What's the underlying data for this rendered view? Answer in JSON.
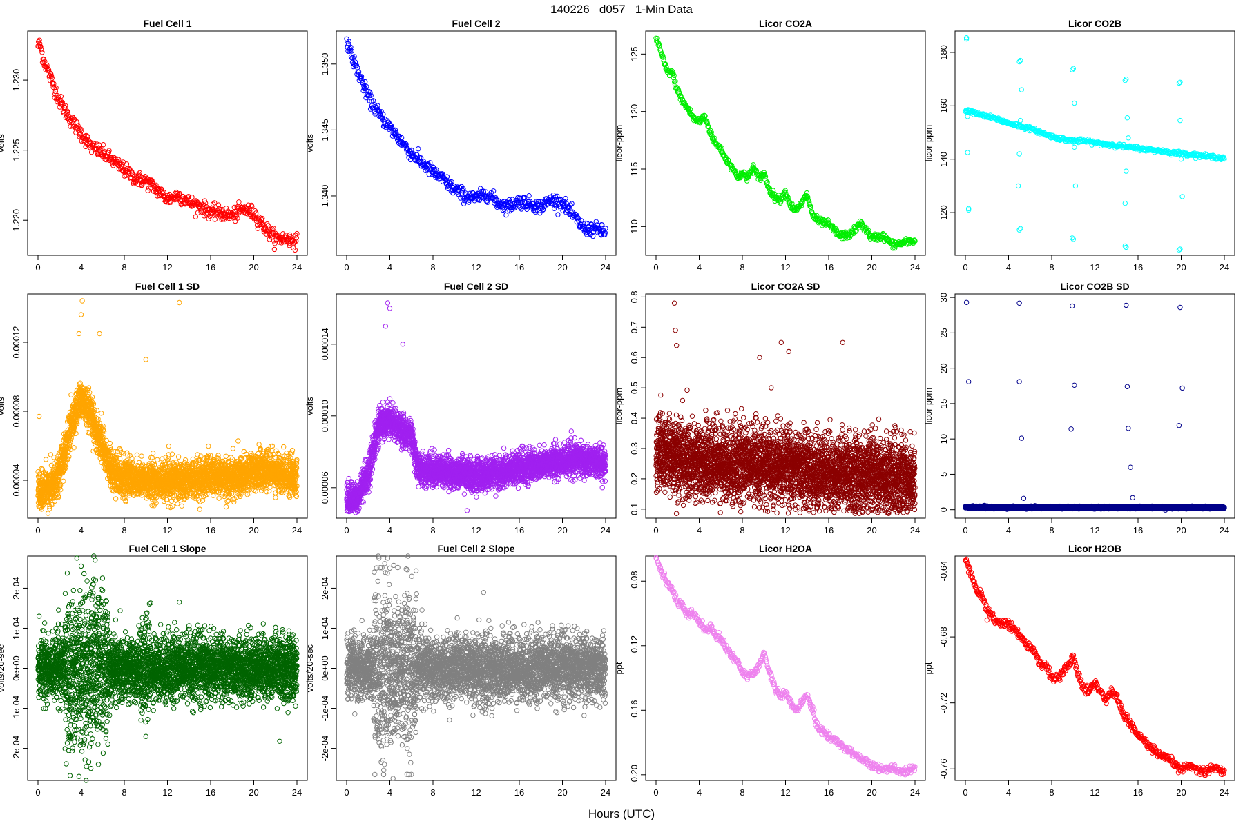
{
  "page": {
    "title": "140226   d057   1-Min Data",
    "xlabel": "Hours (UTC)"
  },
  "chart_data": [
    {
      "id": "fc1",
      "type": "scatter",
      "title": "Fuel Cell 1",
      "ylabel": "volts",
      "color": "#ff0000",
      "xlim": [
        0,
        24
      ],
      "ylim": [
        1.2175,
        1.2335
      ],
      "xticks": [
        0,
        4,
        8,
        12,
        16,
        20,
        24
      ],
      "yticks": [
        1.22,
        1.225,
        1.23
      ],
      "ytick_labels": [
        "1.220",
        "1.225",
        "1.230"
      ],
      "x": [
        0.2,
        0.5,
        1,
        1.5,
        2,
        3,
        4,
        5,
        6,
        7,
        8,
        9,
        10,
        11,
        12,
        13,
        14,
        15,
        16,
        17,
        18,
        19,
        20,
        21,
        22,
        23,
        24
      ],
      "y": [
        1.2325,
        1.2315,
        1.2305,
        1.2295,
        1.2285,
        1.2272,
        1.2262,
        1.2252,
        1.2248,
        1.2242,
        1.2236,
        1.223,
        1.2228,
        1.2222,
        1.2215,
        1.2218,
        1.2213,
        1.221,
        1.2206,
        1.2205,
        1.2203,
        1.2208,
        1.2205,
        1.2195,
        1.2187,
        1.2187,
        1.2185
      ],
      "noise": 0.00025,
      "density": 6
    },
    {
      "id": "fc2",
      "type": "scatter",
      "title": "Fuel Cell 2",
      "ylabel": "volts",
      "color": "#0000ff",
      "xlim": [
        0,
        24
      ],
      "ylim": [
        1.3355,
        1.3525
      ],
      "xticks": [
        0,
        4,
        8,
        12,
        16,
        20,
        24
      ],
      "yticks": [
        1.34,
        1.345,
        1.35
      ],
      "ytick_labels": [
        "1.340",
        "1.345",
        "1.350"
      ],
      "x": [
        0.2,
        0.5,
        1,
        1.5,
        2,
        3,
        4,
        5,
        6,
        7,
        8,
        9,
        10,
        11,
        12,
        13,
        14,
        15,
        16,
        17,
        18,
        19,
        20,
        21,
        22,
        23,
        24
      ],
      "y": [
        1.3515,
        1.3505,
        1.3495,
        1.3485,
        1.3475,
        1.3462,
        1.3452,
        1.3442,
        1.3432,
        1.3425,
        1.3418,
        1.3412,
        1.3405,
        1.34,
        1.3398,
        1.3402,
        1.3395,
        1.3392,
        1.3396,
        1.3394,
        1.3392,
        1.3397,
        1.3395,
        1.3385,
        1.3375,
        1.3375,
        1.3372
      ],
      "noise": 0.00025,
      "density": 6
    },
    {
      "id": "co2a",
      "type": "scatter",
      "title": "Licor CO2A",
      "ylabel": "licor-ppm",
      "color": "#00ee00",
      "xlim": [
        0,
        24
      ],
      "ylim": [
        107.5,
        127.0
      ],
      "xticks": [
        0,
        4,
        8,
        12,
        16,
        20,
        24
      ],
      "yticks": [
        110,
        115,
        120,
        125
      ],
      "ytick_labels": [
        "110",
        "115",
        "120",
        "125"
      ],
      "x": [
        0.1,
        0.5,
        1,
        1.5,
        2,
        2.5,
        3,
        3.5,
        4,
        4.5,
        5,
        5.5,
        6,
        6.5,
        7,
        7.5,
        8,
        8.5,
        9,
        9.5,
        10,
        10.5,
        11,
        11.5,
        12,
        12.5,
        13,
        13.5,
        14,
        14.5,
        15,
        16,
        17,
        18,
        19,
        20,
        21,
        22,
        23,
        24
      ],
      "y": [
        126.3,
        125.0,
        123.5,
        123.4,
        121.8,
        120.8,
        120.2,
        119.4,
        119.1,
        119.6,
        118.3,
        117.2,
        116.8,
        115.8,
        115.3,
        114.3,
        114.6,
        114.2,
        115.2,
        114.2,
        114.6,
        113.2,
        112.6,
        112.3,
        113.0,
        111.8,
        111.4,
        112.0,
        112.8,
        111.0,
        110.5,
        110.2,
        109.2,
        109.3,
        110.3,
        109.0,
        109.2,
        108.4,
        108.6,
        108.8
      ],
      "noise": 0.15,
      "density": 6
    },
    {
      "id": "co2b",
      "type": "scatter",
      "title": "Licor CO2B",
      "ylabel": "licor-ppm",
      "color": "#00ffff",
      "xlim": [
        0,
        24
      ],
      "ylim": [
        104,
        188
      ],
      "xticks": [
        0,
        4,
        8,
        12,
        16,
        20,
        24
      ],
      "yticks": [
        120,
        140,
        160,
        180
      ],
      "ytick_labels": [
        "120",
        "140",
        "160",
        "180"
      ],
      "x": [
        0.5,
        1,
        2,
        3,
        4,
        5,
        6,
        7,
        8,
        9,
        10,
        11,
        12,
        13,
        14,
        15,
        16,
        17,
        18,
        19,
        20,
        21,
        22,
        23,
        24
      ],
      "y": [
        158,
        157,
        156,
        155,
        153.5,
        152.5,
        151.5,
        150,
        148.5,
        147.5,
        147,
        146.8,
        146.2,
        145.6,
        145.2,
        144.5,
        144.2,
        143.5,
        143.2,
        142.6,
        142.2,
        141.8,
        141.2,
        140.8,
        140.5
      ],
      "noise": 0.35,
      "density": 5,
      "outliers": [
        [
          0.1,
          185
        ],
        [
          0.1,
          185.5
        ],
        [
          0.3,
          121
        ],
        [
          0.3,
          121.5
        ],
        [
          0.2,
          156
        ],
        [
          0.2,
          142.5
        ],
        [
          5.0,
          176.5
        ],
        [
          5.1,
          177
        ],
        [
          5.0,
          113.5
        ],
        [
          5.1,
          114
        ],
        [
          5.2,
          166
        ],
        [
          4.9,
          130
        ],
        [
          5.0,
          142
        ],
        [
          5.1,
          154.5
        ],
        [
          9.9,
          173.5
        ],
        [
          10.0,
          174
        ],
        [
          9.9,
          110.5
        ],
        [
          10.0,
          110
        ],
        [
          10.1,
          161
        ],
        [
          10.2,
          130
        ],
        [
          10.1,
          144.5
        ],
        [
          14.8,
          169.5
        ],
        [
          14.9,
          170
        ],
        [
          14.8,
          107.5
        ],
        [
          14.9,
          107
        ],
        [
          15.0,
          155.5
        ],
        [
          14.8,
          123.5
        ],
        [
          14.9,
          135.5
        ],
        [
          15.1,
          148
        ],
        [
          19.8,
          168.5
        ],
        [
          19.9,
          168.8
        ],
        [
          19.8,
          106
        ],
        [
          19.9,
          106.3
        ],
        [
          19.9,
          154.5
        ],
        [
          20.1,
          126
        ],
        [
          20.0,
          140
        ]
      ]
    },
    {
      "id": "fc1sd",
      "type": "scatter",
      "title": "Fuel Cell 1 SD",
      "ylabel": "volts",
      "color": "#ffa500",
      "xlim": [
        0,
        24
      ],
      "ylim": [
        1.8e-05,
        0.000148
      ],
      "xticks": [
        0,
        4,
        8,
        12,
        16,
        20,
        24
      ],
      "yticks": [
        4e-05,
        8e-05,
        0.00012
      ],
      "ytick_labels": [
        "0.00004",
        "0.00008",
        "0.00012"
      ],
      "x": [
        0,
        1,
        2,
        3,
        4,
        5,
        6,
        6.5,
        7,
        8,
        10,
        12,
        14,
        16,
        18,
        20,
        22,
        24
      ],
      "y": [
        3.3e-05,
        3.5e-05,
        4.5e-05,
        7e-05,
        8.8e-05,
        7.5e-05,
        6e-05,
        5e-05,
        4.4e-05,
        4.2e-05,
        4e-05,
        3.9e-05,
        4.1e-05,
        4.2e-05,
        4.1e-05,
        4.6e-05,
        4.5e-05,
        4.2e-05
      ],
      "noise": 9e-06,
      "density": 40,
      "outliers": [
        [
          4.1,
          0.000144
        ],
        [
          13.1,
          0.000143
        ],
        [
          10.0,
          0.00011
        ],
        [
          4.0,
          0.000136
        ],
        [
          3.8,
          0.000125
        ],
        [
          5.7,
          0.000125
        ],
        [
          0.1,
          7.7e-05
        ]
      ]
    },
    {
      "id": "fc2sd",
      "type": "scatter",
      "title": "Fuel Cell 2 SD",
      "ylabel": "volts",
      "color": "#a020f0",
      "xlim": [
        0,
        24
      ],
      "ylim": [
        4.3e-05,
        0.000168
      ],
      "xticks": [
        0,
        4,
        8,
        12,
        16,
        20,
        24
      ],
      "yticks": [
        6e-05,
        0.0001,
        0.00014
      ],
      "ytick_labels": [
        "0.00006",
        "0.00010",
        "0.00014"
      ],
      "x": [
        0,
        1,
        2,
        3,
        4,
        5,
        6,
        6.5,
        7,
        8,
        10,
        12,
        14,
        16,
        18,
        20,
        22,
        24
      ],
      "y": [
        5.2e-05,
        5.4e-05,
        6.8e-05,
        9.5e-05,
        9.8e-05,
        9.2e-05,
        9e-05,
        7.2e-05,
        7e-05,
        7e-05,
        6.8e-05,
        6.7e-05,
        6.8e-05,
        7.1e-05,
        7.3e-05,
        7.5e-05,
        7.6e-05,
        7.4e-05
      ],
      "noise": 7e-06,
      "density": 40,
      "outliers": [
        [
          3.8,
          0.000163
        ],
        [
          4.0,
          0.00016
        ],
        [
          3.6,
          0.00015
        ],
        [
          5.2,
          0.00014
        ]
      ]
    },
    {
      "id": "co2asd",
      "type": "scatter",
      "title": "Licor CO2A SD",
      "ylabel": "licor-ppm",
      "color": "#8b0000",
      "xlim": [
        0,
        24
      ],
      "ylim": [
        0.07,
        0.81
      ],
      "xticks": [
        0,
        4,
        8,
        12,
        16,
        20,
        24
      ],
      "yticks": [
        0.1,
        0.2,
        0.3,
        0.4,
        0.5,
        0.6,
        0.7,
        0.8
      ],
      "ytick_labels": [
        "0.1",
        "0.2",
        "0.3",
        "0.4",
        "0.5",
        "0.6",
        "0.7",
        "0.8"
      ],
      "x": [
        0,
        4,
        8,
        12,
        16,
        20,
        24
      ],
      "y": [
        0.28,
        0.26,
        0.25,
        0.24,
        0.22,
        0.21,
        0.2
      ],
      "noise": 0.1,
      "density": 45,
      "outliers": [
        [
          1.7,
          0.78
        ],
        [
          1.8,
          0.69
        ],
        [
          11.6,
          0.65
        ],
        [
          17.3,
          0.65
        ],
        [
          1.9,
          0.64
        ],
        [
          12.3,
          0.62
        ],
        [
          9.6,
          0.6
        ]
      ]
    },
    {
      "id": "co2bsd",
      "type": "scatter",
      "title": "Licor CO2B SD",
      "ylabel": "licor-ppm",
      "color": "#00008b",
      "xlim": [
        0,
        24
      ],
      "ylim": [
        -1.2,
        30.5
      ],
      "xticks": [
        0,
        4,
        8,
        12,
        16,
        20,
        24
      ],
      "yticks": [
        0,
        5,
        10,
        15,
        20,
        25,
        30
      ],
      "ytick_labels": [
        "0",
        "5",
        "10",
        "15",
        "20",
        "25",
        "30"
      ],
      "x": [
        0,
        4,
        8,
        12,
        16,
        20,
        24
      ],
      "y": [
        0.35,
        0.3,
        0.3,
        0.3,
        0.3,
        0.3,
        0.3
      ],
      "noise": 0.12,
      "density": 55,
      "outliers": [
        [
          0.1,
          29.3
        ],
        [
          5.0,
          29.2
        ],
        [
          9.9,
          28.8
        ],
        [
          14.9,
          28.9
        ],
        [
          19.9,
          28.6
        ],
        [
          0.3,
          18.1
        ],
        [
          5.0,
          18.1
        ],
        [
          10.1,
          17.6
        ],
        [
          15.0,
          17.4
        ],
        [
          20.1,
          17.2
        ],
        [
          5.2,
          10.1
        ],
        [
          9.8,
          11.4
        ],
        [
          15.1,
          11.5
        ],
        [
          19.8,
          11.9
        ],
        [
          15.3,
          6.0
        ],
        [
          5.4,
          1.6
        ],
        [
          15.5,
          1.7
        ]
      ]
    },
    {
      "id": "fc1slope",
      "type": "scatter",
      "title": "Fuel Cell 1 Slope",
      "ylabel": "volts/20-sec",
      "color": "#006400",
      "xlim": [
        0,
        24
      ],
      "ylim": [
        -0.00028,
        0.00028
      ],
      "xticks": [
        0,
        4,
        8,
        12,
        16,
        20,
        24
      ],
      "yticks": [
        -0.0002,
        -0.0001,
        0,
        0.0001,
        0.0002
      ],
      "ytick_labels": [
        "-2e-04",
        "-1e-04",
        "0e+00",
        "1e-04",
        "2e-04"
      ],
      "x": [
        0,
        24
      ],
      "y": [
        0,
        0
      ],
      "noise": 3.8e-05,
      "density": 45,
      "wide": [
        [
          2.5,
          6.5,
          9.5e-05
        ],
        [
          9.5,
          10.5,
          6e-05
        ]
      ],
      "outliers": [
        [
          3.6,
          0.000275
        ],
        [
          3.8,
          -0.00027
        ],
        [
          5.3,
          0.00027
        ],
        [
          4.0,
          0.000255
        ],
        [
          13.1,
          0.000165
        ],
        [
          10.0,
          -0.00017
        ],
        [
          0.1,
          0.00013
        ],
        [
          4.9,
          -0.00025
        ],
        [
          5.6,
          -0.00024
        ]
      ]
    },
    {
      "id": "fc2slope",
      "type": "scatter",
      "title": "Fuel Cell 2 Slope",
      "ylabel": "volts/20-sec",
      "color": "#808080",
      "xlim": [
        0,
        24
      ],
      "ylim": [
        -0.00028,
        0.00028
      ],
      "xticks": [
        0,
        4,
        8,
        12,
        16,
        20,
        24
      ],
      "yticks": [
        -0.0002,
        -0.0001,
        0,
        0.0001,
        0.0002
      ],
      "ytick_labels": [
        "-2e-04",
        "-1e-04",
        "0e+00",
        "1e-04",
        "2e-04"
      ],
      "x": [
        0,
        24
      ],
      "y": [
        0,
        0
      ],
      "noise": 3.8e-05,
      "density": 45,
      "wide": [
        [
          2.5,
          6.5,
          0.0001
        ],
        [
          12.5,
          13.5,
          5e-05
        ]
      ],
      "outliers": [
        [
          3.8,
          0.000275
        ],
        [
          4.3,
          -0.000275
        ],
        [
          6.0,
          -0.000265
        ],
        [
          4.0,
          0.00025
        ],
        [
          3.5,
          -0.00024
        ],
        [
          22.0,
          -0.000118
        ],
        [
          15.0,
          0.000115
        ]
      ]
    },
    {
      "id": "h2oa",
      "type": "scatter",
      "title": "Licor H2OA",
      "ylabel": "ppt",
      "color": "#ee82ee",
      "xlim": [
        0,
        24
      ],
      "ylim": [
        -0.2035,
        -0.0645
      ],
      "xticks": [
        0,
        4,
        8,
        12,
        16,
        20,
        24
      ],
      "yticks": [
        -0.2,
        -0.16,
        -0.12,
        -0.08
      ],
      "ytick_labels": [
        "-0.20",
        "-0.16",
        "-0.12",
        "-0.08"
      ],
      "x": [
        0.1,
        0.5,
        1,
        1.5,
        2,
        2.5,
        3,
        3.5,
        4,
        4.5,
        5,
        5.5,
        6,
        6.5,
        7,
        7.5,
        8,
        8.5,
        9,
        9.5,
        10,
        10.5,
        11,
        11.5,
        12,
        12.5,
        13,
        13.5,
        14,
        14.5,
        15,
        16,
        17,
        18,
        19,
        20,
        21,
        22,
        23,
        24
      ],
      "y": [
        -0.067,
        -0.073,
        -0.08,
        -0.086,
        -0.093,
        -0.096,
        -0.101,
        -0.1,
        -0.105,
        -0.11,
        -0.108,
        -0.113,
        -0.116,
        -0.121,
        -0.126,
        -0.129,
        -0.137,
        -0.139,
        -0.137,
        -0.134,
        -0.124,
        -0.136,
        -0.146,
        -0.151,
        -0.149,
        -0.156,
        -0.16,
        -0.156,
        -0.15,
        -0.16,
        -0.171,
        -0.176,
        -0.181,
        -0.185,
        -0.19,
        -0.194,
        -0.197,
        -0.196,
        -0.199,
        -0.196
      ],
      "noise": 0.0012,
      "density": 6
    },
    {
      "id": "h2ob",
      "type": "scatter",
      "title": "Licor H2OB",
      "ylabel": "ppt",
      "color": "#ff0000",
      "xlim": [
        0,
        24
      ],
      "ylim": [
        -0.767,
        -0.631
      ],
      "xticks": [
        0,
        4,
        8,
        12,
        16,
        20,
        24
      ],
      "yticks": [
        -0.76,
        -0.72,
        -0.68,
        -0.64
      ],
      "ytick_labels": [
        "-0.76",
        "-0.72",
        "-0.68",
        "-0.64"
      ],
      "x": [
        0.1,
        0.5,
        1,
        1.5,
        2,
        2.5,
        3,
        3.5,
        4,
        4.5,
        5,
        5.5,
        6,
        6.5,
        7,
        7.5,
        8,
        8.5,
        9,
        9.5,
        10,
        10.5,
        11,
        11.5,
        12,
        12.5,
        13,
        13.5,
        14,
        14.5,
        15,
        16,
        17,
        18,
        19,
        20,
        21,
        22,
        23,
        24
      ],
      "y": [
        -0.634,
        -0.642,
        -0.651,
        -0.655,
        -0.664,
        -0.667,
        -0.672,
        -0.671,
        -0.673,
        -0.675,
        -0.678,
        -0.683,
        -0.686,
        -0.691,
        -0.697,
        -0.697,
        -0.704,
        -0.706,
        -0.702,
        -0.697,
        -0.692,
        -0.704,
        -0.712,
        -0.712,
        -0.708,
        -0.713,
        -0.718,
        -0.713,
        -0.716,
        -0.725,
        -0.73,
        -0.739,
        -0.746,
        -0.752,
        -0.755,
        -0.76,
        -0.758,
        -0.762,
        -0.759,
        -0.762
      ],
      "noise": 0.0012,
      "density": 6
    }
  ]
}
